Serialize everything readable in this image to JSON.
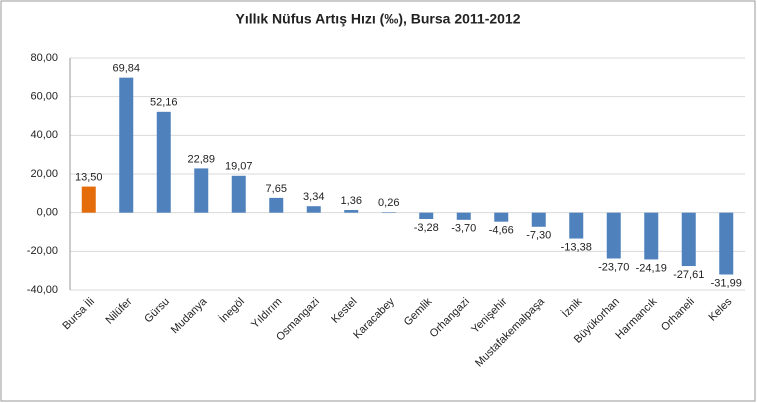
{
  "chart_data": {
    "type": "bar",
    "title": "Yıllık Nüfus Artış Hızı (‰), Bursa 2011-2012",
    "categories": [
      "Bursa İli",
      "Nilüfer",
      "Gürsu",
      "Mudanya",
      "İnegöl",
      "Yıldırım",
      "Osmangazi",
      "Kestel",
      "Karacabey",
      "Gemlik",
      "Orhangazi",
      "Yenişehir",
      "Mustafakemalpaşa",
      "İznik",
      "Büyükorhan",
      "Harmancık",
      "Orhaneli",
      "Keles"
    ],
    "values": [
      13.5,
      69.84,
      52.16,
      22.89,
      19.07,
      7.65,
      3.34,
      1.36,
      0.26,
      -3.28,
      -3.7,
      -4.66,
      -7.3,
      -13.38,
      -23.7,
      -24.19,
      -27.61,
      -31.99
    ],
    "value_labels": [
      "13,50",
      "69,84",
      "52,16",
      "22,89",
      "19,07",
      "7,65",
      "3,34",
      "1,36",
      "0,26",
      "-3,28",
      "-3,70",
      "-4,66",
      "-7,30",
      "-13,38",
      "-23,70",
      "-24,19",
      "-27,61",
      "-31,99"
    ],
    "colors": [
      "#e46c0a",
      "#4f81bd",
      "#4f81bd",
      "#4f81bd",
      "#4f81bd",
      "#4f81bd",
      "#4f81bd",
      "#4f81bd",
      "#4f81bd",
      "#4f81bd",
      "#4f81bd",
      "#4f81bd",
      "#4f81bd",
      "#4f81bd",
      "#4f81bd",
      "#4f81bd",
      "#4f81bd",
      "#4f81bd"
    ],
    "ylim": [
      -40,
      80
    ],
    "yticks": [
      {
        "value": -40,
        "label": "-40,00"
      },
      {
        "value": -20,
        "label": "-20,00"
      },
      {
        "value": 0,
        "label": "0,00"
      },
      {
        "value": 20,
        "label": "20,00"
      },
      {
        "value": 40,
        "label": "40,00"
      },
      {
        "value": 60,
        "label": "60,00"
      },
      {
        "value": 80,
        "label": "80,00"
      }
    ],
    "grid": true
  }
}
